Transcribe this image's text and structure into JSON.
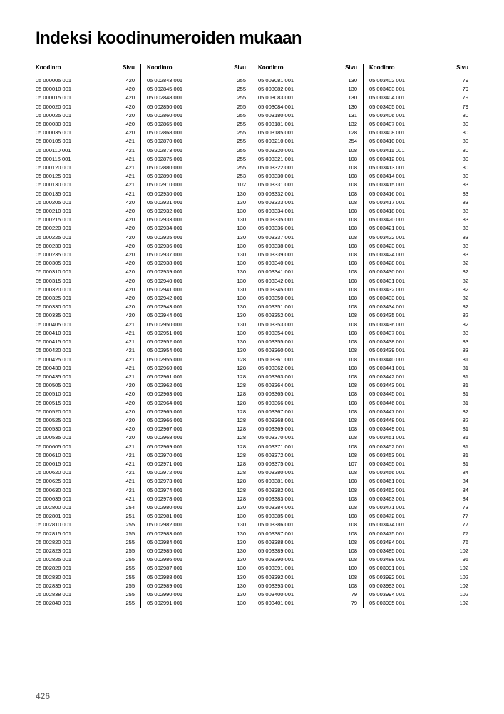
{
  "title": "Indeksi koodinumeroiden mukaan",
  "header_code": "Koodinro",
  "header_page": "Sivu",
  "page_number": "426",
  "columns": [
    [
      [
        "05 000005 001",
        "420"
      ],
      [
        "05 000010 001",
        "420"
      ],
      [
        "05 000015 001",
        "420"
      ],
      [
        "05 000020 001",
        "420"
      ],
      [
        "05 000025 001",
        "420"
      ],
      [
        "05 000030 001",
        "420"
      ],
      [
        "05 000035 001",
        "420"
      ],
      [
        "05 000105 001",
        "421"
      ],
      [
        "05 000110 001",
        "421"
      ],
      [
        "05 000115 001",
        "421"
      ],
      [
        "05 000120 001",
        "421"
      ],
      [
        "05 000125 001",
        "421"
      ],
      [
        "05 000130 001",
        "421"
      ],
      [
        "05 000135 001",
        "421"
      ],
      [
        "05 000205 001",
        "420"
      ],
      [
        "05 000210 001",
        "420"
      ],
      [
        "05 000215 001",
        "420"
      ],
      [
        "05 000220 001",
        "420"
      ],
      [
        "05 000225 001",
        "420"
      ],
      [
        "05 000230 001",
        "420"
      ],
      [
        "05 000235 001",
        "420"
      ],
      [
        "05 000305 001",
        "420"
      ],
      [
        "05 000310 001",
        "420"
      ],
      [
        "05 000315 001",
        "420"
      ],
      [
        "05 000320 001",
        "420"
      ],
      [
        "05 000325 001",
        "420"
      ],
      [
        "05 000330 001",
        "420"
      ],
      [
        "05 000335 001",
        "420"
      ],
      [
        "05 000405 001",
        "421"
      ],
      [
        "05 000410 001",
        "421"
      ],
      [
        "05 000415 001",
        "421"
      ],
      [
        "05 000420 001",
        "421"
      ],
      [
        "05 000425 001",
        "421"
      ],
      [
        "05 000430 001",
        "421"
      ],
      [
        "05 000435 001",
        "421"
      ],
      [
        "05 000505 001",
        "420"
      ],
      [
        "05 000510 001",
        "420"
      ],
      [
        "05 000515 001",
        "420"
      ],
      [
        "05 000520 001",
        "420"
      ],
      [
        "05 000525 001",
        "420"
      ],
      [
        "05 000530 001",
        "420"
      ],
      [
        "05 000535 001",
        "420"
      ],
      [
        "05 000605 001",
        "421"
      ],
      [
        "05 000610 001",
        "421"
      ],
      [
        "05 000615 001",
        "421"
      ],
      [
        "05 000620 001",
        "421"
      ],
      [
        "05 000625 001",
        "421"
      ],
      [
        "05 000630 001",
        "421"
      ],
      [
        "05 000635 001",
        "421"
      ],
      [
        "05 002800 001",
        "254"
      ],
      [
        "05 002801 001",
        "251"
      ],
      [
        "05 002810 001",
        "255"
      ],
      [
        "05 002815 001",
        "255"
      ],
      [
        "05 002820 001",
        "255"
      ],
      [
        "05 002823 001",
        "255"
      ],
      [
        "05 002825 001",
        "255"
      ],
      [
        "05 002828 001",
        "255"
      ],
      [
        "05 002830 001",
        "255"
      ],
      [
        "05 002835 001",
        "255"
      ],
      [
        "05 002838 001",
        "255"
      ],
      [
        "05 002840 001",
        "255"
      ]
    ],
    [
      [
        "05 002843 001",
        "255"
      ],
      [
        "05 002845 001",
        "255"
      ],
      [
        "05 002848 001",
        "255"
      ],
      [
        "05 002850 001",
        "255"
      ],
      [
        "05 002860 001",
        "255"
      ],
      [
        "05 002865 001",
        "255"
      ],
      [
        "05 002868 001",
        "255"
      ],
      [
        "05 002870 001",
        "255"
      ],
      [
        "05 002873 001",
        "255"
      ],
      [
        "05 002875 001",
        "255"
      ],
      [
        "05 002880 001",
        "255"
      ],
      [
        "05 002890 001",
        "253"
      ],
      [
        "05 002910 001",
        "102"
      ],
      [
        "05 002930 001",
        "130"
      ],
      [
        "05 002931 001",
        "130"
      ],
      [
        "05 002932 001",
        "130"
      ],
      [
        "05 002933 001",
        "130"
      ],
      [
        "05 002934 001",
        "130"
      ],
      [
        "05 002935 001",
        "130"
      ],
      [
        "05 002936 001",
        "130"
      ],
      [
        "05 002937 001",
        "130"
      ],
      [
        "05 002938 001",
        "130"
      ],
      [
        "05 002939 001",
        "130"
      ],
      [
        "05 002940 001",
        "130"
      ],
      [
        "05 002941 001",
        "130"
      ],
      [
        "05 002942 001",
        "130"
      ],
      [
        "05 002943 001",
        "130"
      ],
      [
        "05 002944 001",
        "130"
      ],
      [
        "05 002950 001",
        "130"
      ],
      [
        "05 002951 001",
        "130"
      ],
      [
        "05 002952 001",
        "130"
      ],
      [
        "05 002954 001",
        "130"
      ],
      [
        "05 002955 001",
        "128"
      ],
      [
        "05 002960 001",
        "128"
      ],
      [
        "05 002961 001",
        "128"
      ],
      [
        "05 002962 001",
        "128"
      ],
      [
        "05 002963 001",
        "128"
      ],
      [
        "05 002964 001",
        "128"
      ],
      [
        "05 002965 001",
        "128"
      ],
      [
        "05 002966 001",
        "128"
      ],
      [
        "05 002967 001",
        "128"
      ],
      [
        "05 002968 001",
        "128"
      ],
      [
        "05 002969 001",
        "128"
      ],
      [
        "05 002970 001",
        "128"
      ],
      [
        "05 002971 001",
        "128"
      ],
      [
        "05 002972 001",
        "128"
      ],
      [
        "05 002973 001",
        "128"
      ],
      [
        "05 002974 001",
        "128"
      ],
      [
        "05 002978 001",
        "128"
      ],
      [
        "05 002980 001",
        "130"
      ],
      [
        "05 002981 001",
        "130"
      ],
      [
        "05 002982 001",
        "130"
      ],
      [
        "05 002983 001",
        "130"
      ],
      [
        "05 002984 001",
        "130"
      ],
      [
        "05 002985 001",
        "130"
      ],
      [
        "05 002986 001",
        "130"
      ],
      [
        "05 002987 001",
        "130"
      ],
      [
        "05 002988 001",
        "130"
      ],
      [
        "05 002989 001",
        "130"
      ],
      [
        "05 002990 001",
        "130"
      ],
      [
        "05 002991 001",
        "130"
      ]
    ],
    [
      [
        "05 003081 001",
        "130"
      ],
      [
        "05 003082 001",
        "130"
      ],
      [
        "05 003083 001",
        "130"
      ],
      [
        "05 003084 001",
        "130"
      ],
      [
        "05 003180 001",
        "131"
      ],
      [
        "05 003181 001",
        "132"
      ],
      [
        "05 003185 001",
        "128"
      ],
      [
        "05 003210 001",
        "254"
      ],
      [
        "05 003320 001",
        "108"
      ],
      [
        "05 003321 001",
        "108"
      ],
      [
        "05 003322 001",
        "108"
      ],
      [
        "05 003330 001",
        "108"
      ],
      [
        "05 003331 001",
        "108"
      ],
      [
        "05 003332 001",
        "108"
      ],
      [
        "05 003333 001",
        "108"
      ],
      [
        "05 003334 001",
        "108"
      ],
      [
        "05 003335 001",
        "108"
      ],
      [
        "05 003336 001",
        "108"
      ],
      [
        "05 003337 001",
        "108"
      ],
      [
        "05 003338 001",
        "108"
      ],
      [
        "05 003339 001",
        "108"
      ],
      [
        "05 003340 001",
        "108"
      ],
      [
        "05 003341 001",
        "108"
      ],
      [
        "05 003342 001",
        "108"
      ],
      [
        "05 003345 001",
        "108"
      ],
      [
        "05 003350 001",
        "108"
      ],
      [
        "05 003351 001",
        "108"
      ],
      [
        "05 003352 001",
        "108"
      ],
      [
        "05 003353 001",
        "108"
      ],
      [
        "05 003354 001",
        "108"
      ],
      [
        "05 003355 001",
        "108"
      ],
      [
        "05 003360 001",
        "108"
      ],
      [
        "05 003361 001",
        "108"
      ],
      [
        "05 003362 001",
        "108"
      ],
      [
        "05 003363 001",
        "108"
      ],
      [
        "05 003364 001",
        "108"
      ],
      [
        "05 003365 001",
        "108"
      ],
      [
        "05 003366 001",
        "108"
      ],
      [
        "05 003367 001",
        "108"
      ],
      [
        "05 003368 001",
        "108"
      ],
      [
        "05 003369 001",
        "108"
      ],
      [
        "05 003370 001",
        "108"
      ],
      [
        "05 003371 001",
        "108"
      ],
      [
        "05 003372 001",
        "108"
      ],
      [
        "05 003375 001",
        "107"
      ],
      [
        "05 003380 001",
        "108"
      ],
      [
        "05 003381 001",
        "108"
      ],
      [
        "05 003382 001",
        "108"
      ],
      [
        "05 003383 001",
        "108"
      ],
      [
        "05 003384 001",
        "108"
      ],
      [
        "05 003385 001",
        "108"
      ],
      [
        "05 003386 001",
        "108"
      ],
      [
        "05 003387 001",
        "108"
      ],
      [
        "05 003388 001",
        "108"
      ],
      [
        "05 003389 001",
        "108"
      ],
      [
        "05 003390 001",
        "108"
      ],
      [
        "05 003391 001",
        "100"
      ],
      [
        "05 003392 001",
        "108"
      ],
      [
        "05 003393 001",
        "108"
      ],
      [
        "05 003400 001",
        "79"
      ],
      [
        "05 003401 001",
        "79"
      ]
    ],
    [
      [
        "05 003402 001",
        "79"
      ],
      [
        "05 003403 001",
        "79"
      ],
      [
        "05 003404 001",
        "79"
      ],
      [
        "05 003405 001",
        "79"
      ],
      [
        "05 003406 001",
        "80"
      ],
      [
        "05 003407 001",
        "80"
      ],
      [
        "05 003408 001",
        "80"
      ],
      [
        "05 003410 001",
        "80"
      ],
      [
        "05 003411 001",
        "80"
      ],
      [
        "05 003412 001",
        "80"
      ],
      [
        "05 003413 001",
        "80"
      ],
      [
        "05 003414 001",
        "80"
      ],
      [
        "05 003415 001",
        "83"
      ],
      [
        "05 003416 001",
        "83"
      ],
      [
        "05 003417 001",
        "83"
      ],
      [
        "05 003418 001",
        "83"
      ],
      [
        "05 003420 001",
        "83"
      ],
      [
        "05 003421 001",
        "83"
      ],
      [
        "05 003422 001",
        "83"
      ],
      [
        "05 003423 001",
        "83"
      ],
      [
        "05 003424 001",
        "83"
      ],
      [
        "05 003428 001",
        "82"
      ],
      [
        "05 003430 001",
        "82"
      ],
      [
        "05 003431 001",
        "82"
      ],
      [
        "05 003432 001",
        "82"
      ],
      [
        "05 003433 001",
        "82"
      ],
      [
        "05 003434 001",
        "82"
      ],
      [
        "05 003435 001",
        "82"
      ],
      [
        "05 003436 001",
        "82"
      ],
      [
        "05 003437 001",
        "83"
      ],
      [
        "05 003438 001",
        "83"
      ],
      [
        "05 003439 001",
        "83"
      ],
      [
        "05 003440 001",
        "81"
      ],
      [
        "05 003441 001",
        "81"
      ],
      [
        "05 003442 001",
        "81"
      ],
      [
        "05 003443 001",
        "81"
      ],
      [
        "05 003445 001",
        "81"
      ],
      [
        "05 003446 001",
        "81"
      ],
      [
        "05 003447 001",
        "82"
      ],
      [
        "05 003448 001",
        "82"
      ],
      [
        "05 003449 001",
        "81"
      ],
      [
        "05 003451 001",
        "81"
      ],
      [
        "05 003452 001",
        "81"
      ],
      [
        "05 003453 001",
        "81"
      ],
      [
        "05 003455 001",
        "81"
      ],
      [
        "05 003456 001",
        "84"
      ],
      [
        "05 003461 001",
        "84"
      ],
      [
        "05 003462 001",
        "84"
      ],
      [
        "05 003463 001",
        "84"
      ],
      [
        "05 003471 001",
        "73"
      ],
      [
        "05 003472 001",
        "77"
      ],
      [
        "05 003474 001",
        "77"
      ],
      [
        "05 003475 001",
        "77"
      ],
      [
        "05 003484 001",
        "76"
      ],
      [
        "05 003485 001",
        "102"
      ],
      [
        "05 003488 001",
        "95"
      ],
      [
        "05 003991 001",
        "102"
      ],
      [
        "05 003992 001",
        "102"
      ],
      [
        "05 003993 001",
        "102"
      ],
      [
        "05 003994 001",
        "102"
      ],
      [
        "05 003995 001",
        "102"
      ]
    ]
  ]
}
